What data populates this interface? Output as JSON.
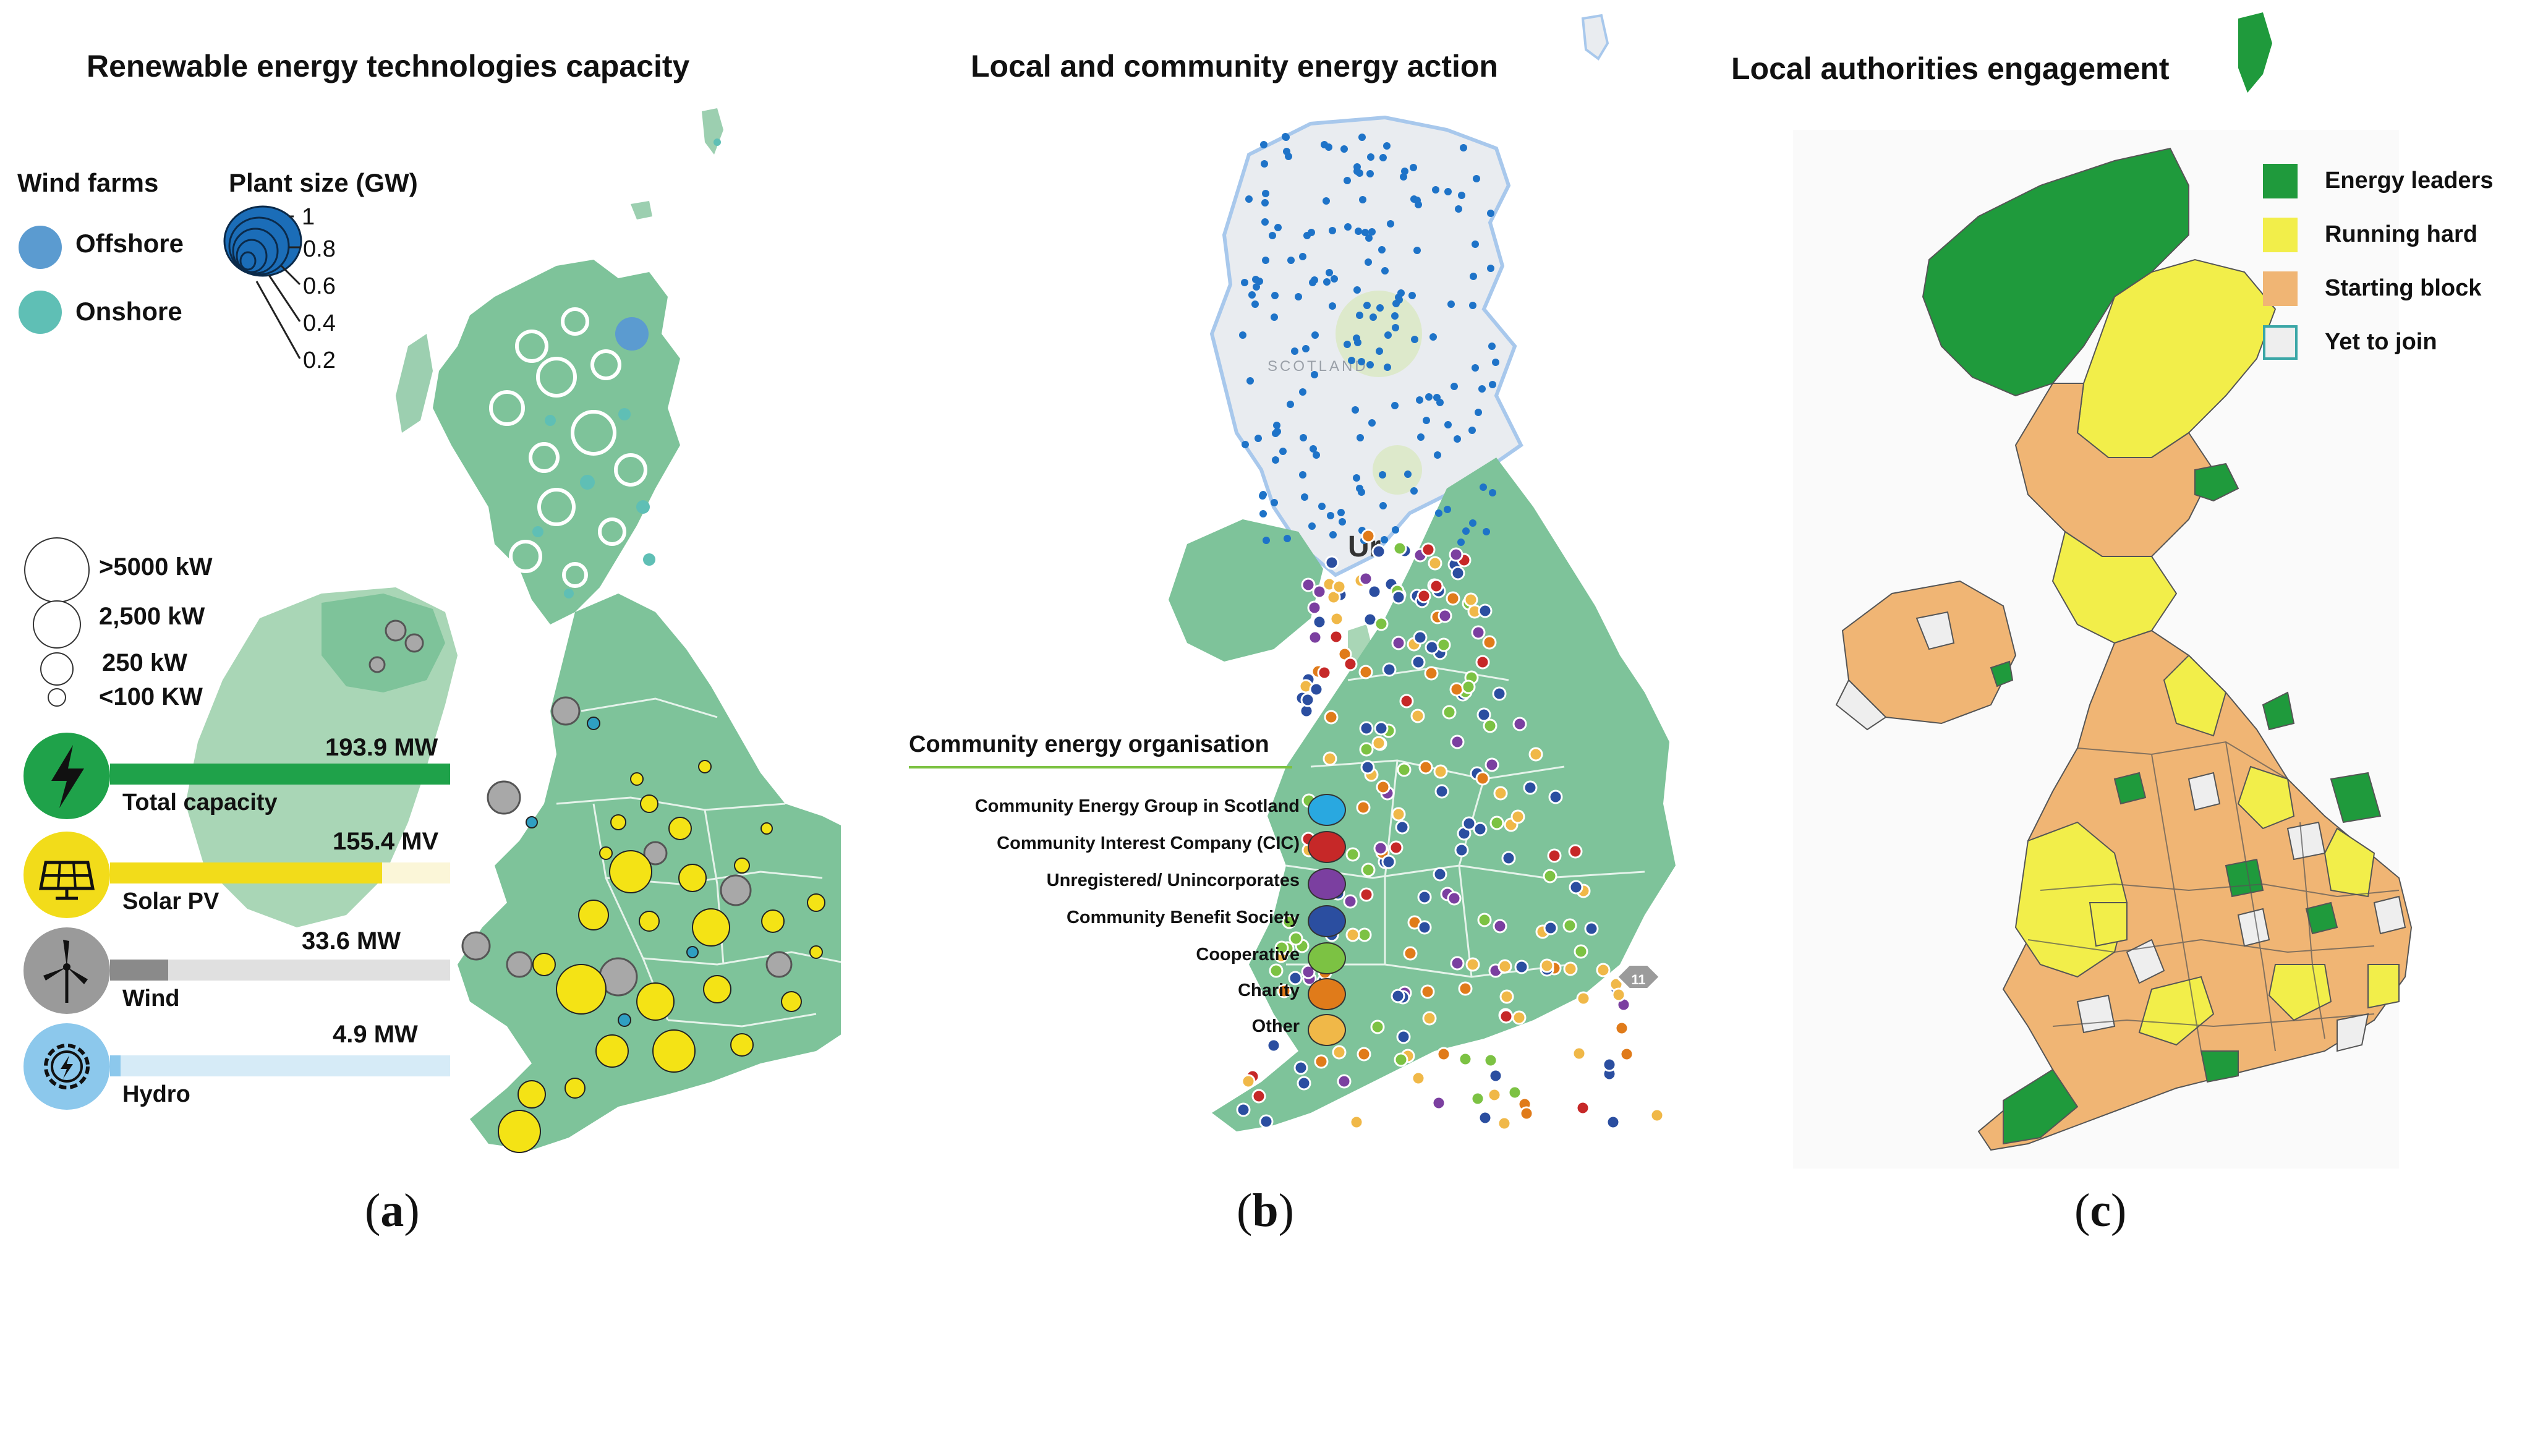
{
  "panel_a": {
    "title": "Renewable energy technologies  capacity",
    "label_open": "(",
    "label_letter": "a",
    "label_close": ")",
    "wind_legend": {
      "heading": "Wind farms",
      "offshore": "Offshore",
      "onshore": "Onshore",
      "offshore_color": "#5b9bd0",
      "onshore_color": "#5fbfb5"
    },
    "plant_size": {
      "heading": "Plant size (GW)",
      "ticks": [
        "1",
        "0.8",
        "0.6",
        "0.4",
        "0.2"
      ]
    },
    "solar_size": {
      "labels": [
        ">5000 kW",
        "2,500 kW",
        "250 kW",
        "<100 KW"
      ]
    },
    "stats": [
      {
        "id": "total",
        "label": "Total capacity",
        "value": "193.9 MW",
        "fill_fraction": 1.0,
        "bar_color": "#1fa24a",
        "icon_color": "#1fa24a",
        "icon": "lightning-icon"
      },
      {
        "id": "solar",
        "label": "Solar PV",
        "value": "155.4 MV",
        "fill_fraction": 0.8,
        "bar_color": "#f2dc1a",
        "icon_color": "#f2dc1a",
        "icon": "solar-panel-icon"
      },
      {
        "id": "wind",
        "label": "Wind",
        "value": "33.6 MW",
        "fill_fraction": 0.17,
        "bar_color": "#8a8a8a",
        "icon_color": "#9a9a9a",
        "icon": "wind-turbine-icon"
      },
      {
        "id": "hydro",
        "label": "Hydro",
        "value": "4.9 MW",
        "fill_fraction": 0.03,
        "bar_color": "#8cc8ec",
        "icon_color": "#8cc8ec",
        "icon": "hydro-gear-icon"
      }
    ],
    "colors": {
      "land": "#7ec39a",
      "ireland": "#a9d6b6",
      "solar_dot": "#f4e315",
      "grey_dot": "#a8a8a8"
    }
  },
  "panel_b": {
    "title": "Local and community energy action",
    "label_open": "(",
    "label_letter": "b",
    "label_close": ")",
    "map_text": {
      "scotland": "SCOTLAND",
      "uk": "Ur"
    },
    "legend": {
      "heading": "Community energy organisation",
      "items": [
        {
          "label": "Community Energy Group in Scotland",
          "color": "#29a8e0"
        },
        {
          "label": "Community Interest Company (CIC)",
          "color": "#c62828"
        },
        {
          "label": "Unregistered/ Unincorporates",
          "color": "#7b3fa0"
        },
        {
          "label": "Community Benefit Society",
          "color": "#2b4ea0"
        },
        {
          "label": "Cooperative",
          "color": "#7cc243"
        },
        {
          "label": "Charity",
          "color": "#e07b1a"
        },
        {
          "label": "Other",
          "color": "#f0b848"
        }
      ]
    },
    "badge": "11",
    "colors": {
      "land": "#7ec39a",
      "scotland_base": "#e9ecf0",
      "scotland_dot": "#1e73c8"
    }
  },
  "panel_c": {
    "title": "Local authorities engagement",
    "label_open": "(",
    "label_letter": "c",
    "label_close": ")",
    "legend": [
      {
        "label": "Energy leaders",
        "color": "#1f9a3c"
      },
      {
        "label": "Running hard",
        "color": "#f2ee4a"
      },
      {
        "label": "Starting block",
        "color": "#f0b574"
      },
      {
        "label": "Yet to join",
        "color": "#eeeeee",
        "border": "#3aa6a6"
      }
    ]
  }
}
